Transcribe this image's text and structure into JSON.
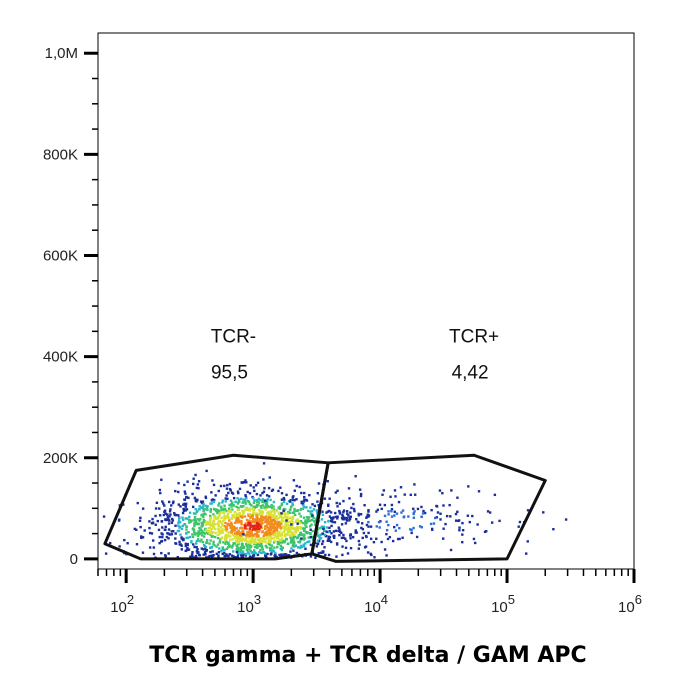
{
  "chart_data": {
    "type": "scatter",
    "title": "",
    "xlabel": "TCR gamma + TCR delta / GAM APC",
    "ylabel": "",
    "x_scale": "log",
    "xlim": [
      60,
      1000000
    ],
    "ylim": [
      -20000,
      1040000
    ],
    "y_ticks": [
      {
        "value": 0,
        "label": "0"
      },
      {
        "value": 200000,
        "label": "200K"
      },
      {
        "value": 400000,
        "label": "400K"
      },
      {
        "value": 600000,
        "label": "600K"
      },
      {
        "value": 800000,
        "label": "800K"
      },
      {
        "value": 1000000,
        "label": "1,0M"
      }
    ],
    "x_ticks": [
      {
        "exp": 2,
        "base": "10",
        "sup": "2"
      },
      {
        "exp": 3,
        "base": "10",
        "sup": "3"
      },
      {
        "exp": 4,
        "base": "10",
        "sup": "4"
      },
      {
        "exp": 5,
        "base": "10",
        "sup": "5"
      },
      {
        "exp": 6,
        "base": "10",
        "sup": "6"
      }
    ],
    "gates": [
      {
        "name": "TCR-",
        "value": "95,5",
        "polygon": [
          [
            68,
            30000
          ],
          [
            120,
            175000
          ],
          [
            700,
            205000
          ],
          [
            3900,
            190000
          ],
          [
            2900,
            10000
          ],
          [
            1500,
            0
          ],
          [
            130,
            0
          ]
        ],
        "label_pos": [
          700,
          400000
        ]
      },
      {
        "name": "TCR+",
        "value": "4,42",
        "polygon": [
          [
            3900,
            190000
          ],
          [
            55000,
            205000
          ],
          [
            200000,
            155000
          ],
          [
            100000,
            0
          ],
          [
            4500,
            -5000
          ],
          [
            2900,
            10000
          ]
        ],
        "label_pos": [
          55000,
          400000
        ]
      }
    ],
    "populations": [
      {
        "gate": "TCR-",
        "x_center": 1000,
        "y_center": 65000,
        "x_spread_log10": 0.38,
        "y_spread": 35000,
        "count": 1800
      },
      {
        "gate": "TCR+",
        "x_center": 15000,
        "y_center": 75000,
        "x_spread_log10": 0.45,
        "y_spread": 35000,
        "count": 180
      }
    ],
    "density_colors": [
      "#1b2f9c",
      "#2f6fd4",
      "#29b6c9",
      "#3cc46b",
      "#d7e234",
      "#f28c1e",
      "#e3241c"
    ],
    "grid": false,
    "legend": "none"
  }
}
